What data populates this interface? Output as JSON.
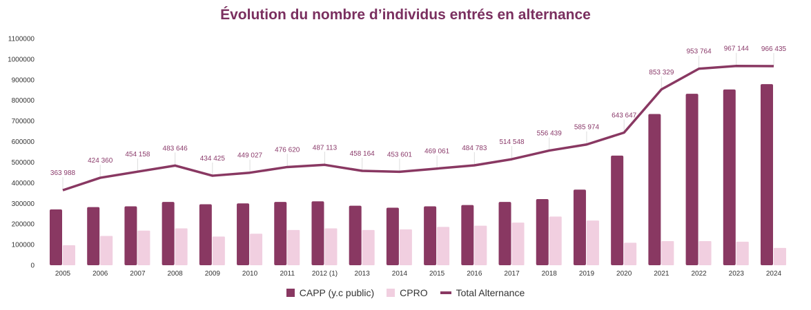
{
  "chart_data": {
    "type": "bar",
    "title": "Évolution du nombre d’individus entrés en alternance",
    "xlabel": "",
    "ylabel": "",
    "ylim": [
      0,
      1100000
    ],
    "yticks": [
      "0",
      "100000",
      "200000",
      "300000",
      "400000",
      "500000",
      "600000",
      "700000",
      "800000",
      "900000",
      "1000000",
      "1100000"
    ],
    "grid": false,
    "legend_position": "bottom",
    "categories": [
      "2005",
      "2006",
      "2007",
      "2008",
      "2009",
      "2010",
      "2011",
      "2012 (1)",
      "2013",
      "2014",
      "2015",
      "2016",
      "2017",
      "2018",
      "2019",
      "2020",
      "2021",
      "2022",
      "2023",
      "2024"
    ],
    "series": [
      {
        "name": "CAPP (y.c public)",
        "type": "bar",
        "color": "#893862",
        "values": [
          271000,
          282000,
          286000,
          307000,
          296000,
          300000,
          307000,
          310000,
          289000,
          279000,
          286000,
          292000,
          307000,
          321000,
          367000,
          532000,
          734000,
          832000,
          853000,
          879000
        ]
      },
      {
        "name": "CPRO",
        "type": "bar",
        "color": "#f1cfe0",
        "values": [
          97000,
          142000,
          168000,
          179000,
          139000,
          153000,
          171000,
          179000,
          171000,
          174000,
          186000,
          192000,
          207000,
          236000,
          217000,
          109000,
          117000,
          117000,
          114000,
          84000
        ]
      },
      {
        "name": "Total Alternance",
        "type": "line",
        "color": "#893862",
        "values": [
          363988,
          424360,
          454158,
          483646,
          434425,
          449027,
          476620,
          487113,
          458164,
          453601,
          469061,
          484783,
          514548,
          556439,
          585974,
          643647,
          853329,
          953764,
          967144,
          966435
        ],
        "labels": [
          "363 988",
          "424 360",
          "454 158",
          "483 646",
          "434 425",
          "449 027",
          "476 620",
          "487 113",
          "458 164",
          "453 601",
          "469 061",
          "484 783",
          "514 548",
          "556 439",
          "585 974",
          "643 647",
          "853 329",
          "953 764",
          "967 144",
          "966 435"
        ]
      }
    ]
  }
}
